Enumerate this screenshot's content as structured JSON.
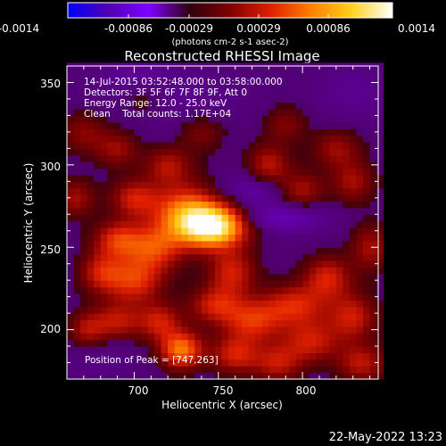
{
  "chart_data": {
    "type": "heatmap",
    "title": "Reconstructed RHESSI Image",
    "xlabel": "Heliocentric X (arcsec)",
    "ylabel": "Heliocentric Y (arcsec)",
    "xlim": [
      660,
      845
    ],
    "ylim": [
      170,
      360
    ],
    "x_ticks": [
      "700",
      "750",
      "800"
    ],
    "y_ticks": [
      "200",
      "250",
      "300",
      "350"
    ],
    "colorbar": {
      "range": [
        -0.0014,
        0.0014
      ],
      "ticks": [
        "-0.0014",
        "-0.00086",
        "-0.00029",
        "0.00029",
        "0.00086",
        "0.0014"
      ],
      "unit_label": "(photons cm-2 s-1 asec-2)",
      "colormap": [
        "#0000ff",
        "#5000b0",
        "#8000ff",
        "#300010",
        "#800000",
        "#e02000",
        "#ff8000",
        "#ffd020",
        "#ffffff"
      ]
    },
    "annotations": [
      "14-Jul-2015 03:52:48.000 to 03:58:00.000",
      "Detectors: 3F 5F 6F 7F 8F 9F, Att 0",
      "Energy Range: 12.0 - 25.0 keV",
      "Clean    Total counts: 1.17E+04"
    ],
    "peak_label": "Position of Peak = [747,263]",
    "peak": [
      747,
      263
    ],
    "blobs": [
      {
        "x": 747,
        "y": 263,
        "sx": 14,
        "sy": 9,
        "amp": 1.0
      },
      {
        "x": 730,
        "y": 272,
        "sx": 14,
        "sy": 12,
        "amp": 0.55
      },
      {
        "x": 712,
        "y": 250,
        "sx": 12,
        "sy": 10,
        "amp": 0.45
      },
      {
        "x": 700,
        "y": 230,
        "sx": 12,
        "sy": 10,
        "amp": 0.45
      },
      {
        "x": 690,
        "y": 255,
        "sx": 10,
        "sy": 8,
        "amp": 0.42
      },
      {
        "x": 680,
        "y": 235,
        "sx": 9,
        "sy": 9,
        "amp": 0.35
      },
      {
        "x": 700,
        "y": 280,
        "sx": 10,
        "sy": 8,
        "amp": 0.38
      },
      {
        "x": 720,
        "y": 300,
        "sx": 10,
        "sy": 8,
        "amp": 0.32
      },
      {
        "x": 758,
        "y": 235,
        "sx": 10,
        "sy": 10,
        "amp": 0.4
      },
      {
        "x": 748,
        "y": 215,
        "sx": 11,
        "sy": 8,
        "amp": 0.38
      },
      {
        "x": 770,
        "y": 205,
        "sx": 12,
        "sy": 9,
        "amp": 0.42
      },
      {
        "x": 795,
        "y": 215,
        "sx": 14,
        "sy": 9,
        "amp": 0.42
      },
      {
        "x": 815,
        "y": 232,
        "sx": 10,
        "sy": 9,
        "amp": 0.4
      },
      {
        "x": 830,
        "y": 208,
        "sx": 10,
        "sy": 10,
        "amp": 0.38
      },
      {
        "x": 805,
        "y": 193,
        "sx": 12,
        "sy": 9,
        "amp": 0.38
      },
      {
        "x": 728,
        "y": 188,
        "sx": 9,
        "sy": 8,
        "amp": 0.62
      },
      {
        "x": 715,
        "y": 205,
        "sx": 9,
        "sy": 8,
        "amp": 0.38
      },
      {
        "x": 690,
        "y": 205,
        "sx": 10,
        "sy": 8,
        "amp": 0.35
      },
      {
        "x": 760,
        "y": 185,
        "sx": 10,
        "sy": 8,
        "amp": 0.4
      },
      {
        "x": 785,
        "y": 180,
        "sx": 10,
        "sy": 8,
        "amp": 0.35
      },
      {
        "x": 835,
        "y": 180,
        "sx": 10,
        "sy": 8,
        "amp": 0.35
      },
      {
        "x": 780,
        "y": 300,
        "sx": 9,
        "sy": 9,
        "amp": 0.35
      },
      {
        "x": 800,
        "y": 285,
        "sx": 9,
        "sy": 8,
        "amp": 0.3
      },
      {
        "x": 830,
        "y": 290,
        "sx": 9,
        "sy": 9,
        "amp": 0.3
      },
      {
        "x": 820,
        "y": 310,
        "sx": 10,
        "sy": 8,
        "amp": 0.28
      },
      {
        "x": 790,
        "y": 325,
        "sx": 9,
        "sy": 8,
        "amp": 0.22
      },
      {
        "x": 670,
        "y": 320,
        "sx": 10,
        "sy": 9,
        "amp": 0.25
      },
      {
        "x": 690,
        "y": 310,
        "sx": 9,
        "sy": 8,
        "amp": 0.28
      },
      {
        "x": 665,
        "y": 280,
        "sx": 8,
        "sy": 8,
        "amp": 0.3
      },
      {
        "x": 672,
        "y": 200,
        "sx": 8,
        "sy": 8,
        "amp": 0.32
      },
      {
        "x": 840,
        "y": 250,
        "sx": 8,
        "sy": 10,
        "amp": 0.3
      },
      {
        "x": 740,
        "y": 320,
        "sx": 10,
        "sy": 8,
        "amp": 0.22
      },
      {
        "x": 705,
        "y": 340,
        "sx": 10,
        "sy": 8,
        "amp": 0.2
      },
      {
        "x": 788,
        "y": 268,
        "sx": 18,
        "sy": 6,
        "amp": -0.28
      },
      {
        "x": 770,
        "y": 285,
        "sx": 12,
        "sy": 7,
        "amp": -0.22
      },
      {
        "x": 720,
        "y": 340,
        "sx": 30,
        "sy": 14,
        "amp": -0.12
      },
      {
        "x": 830,
        "y": 345,
        "sx": 16,
        "sy": 12,
        "amp": -0.12
      },
      {
        "x": 680,
        "y": 185,
        "sx": 14,
        "sy": 10,
        "amp": -0.1
      },
      {
        "x": 700,
        "y": 355,
        "sx": 12,
        "sy": 8,
        "amp": -0.12
      }
    ]
  },
  "timestamp": "22-May-2022 13:23"
}
